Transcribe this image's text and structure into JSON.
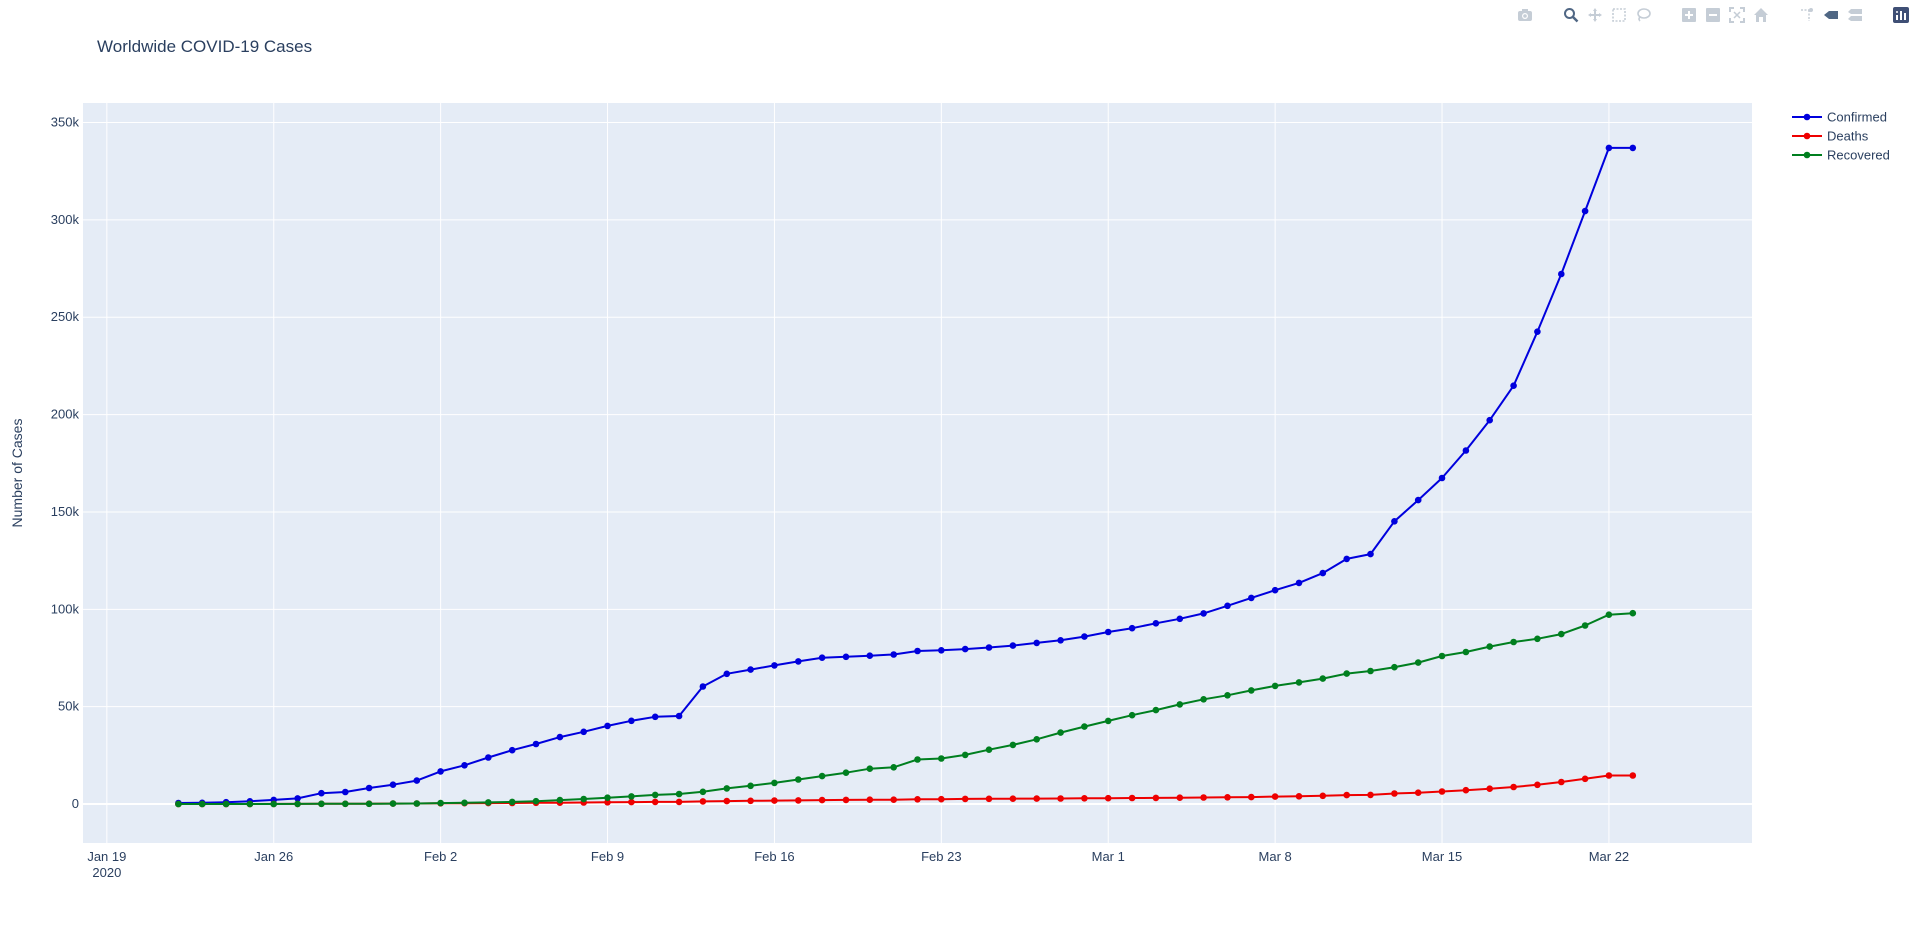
{
  "toolbar": {
    "icons": [
      "camera-icon",
      "zoom-icon",
      "pan-icon",
      "box-select-icon",
      "lasso-select-icon",
      "zoom-in-icon",
      "zoom-out-icon",
      "autoscale-icon",
      "reset-axes-icon",
      "spike-lines-icon",
      "hover-closest-icon",
      "hover-compare-icon",
      "plotly-logo-icon"
    ]
  },
  "colors": {
    "plot_bg": "#e5ecf6",
    "grid": "#ffffff",
    "text": "#2a3f5f",
    "confirmed": "#0000dd",
    "deaths": "#ee0000",
    "recovered": "#007f1f"
  },
  "chart_data": {
    "type": "line",
    "title": "Worldwide COVID-19 Cases",
    "xlabel": "",
    "ylabel": "Number of Cases",
    "x_start": "2020-01-22",
    "x": [
      "2020-01-22",
      "2020-01-23",
      "2020-01-24",
      "2020-01-25",
      "2020-01-26",
      "2020-01-27",
      "2020-01-28",
      "2020-01-29",
      "2020-01-30",
      "2020-01-31",
      "2020-02-01",
      "2020-02-02",
      "2020-02-03",
      "2020-02-04",
      "2020-02-05",
      "2020-02-06",
      "2020-02-07",
      "2020-02-08",
      "2020-02-09",
      "2020-02-10",
      "2020-02-11",
      "2020-02-12",
      "2020-02-13",
      "2020-02-14",
      "2020-02-15",
      "2020-02-16",
      "2020-02-17",
      "2020-02-18",
      "2020-02-19",
      "2020-02-20",
      "2020-02-21",
      "2020-02-22",
      "2020-02-23",
      "2020-02-24",
      "2020-02-25",
      "2020-02-26",
      "2020-02-27",
      "2020-02-28",
      "2020-02-29",
      "2020-03-01",
      "2020-03-02",
      "2020-03-03",
      "2020-03-04",
      "2020-03-05",
      "2020-03-06",
      "2020-03-07",
      "2020-03-08",
      "2020-03-09",
      "2020-03-10",
      "2020-03-11",
      "2020-03-12",
      "2020-03-13",
      "2020-03-14",
      "2020-03-15",
      "2020-03-16",
      "2020-03-17",
      "2020-03-18",
      "2020-03-19",
      "2020-03-20",
      "2020-03-21",
      "2020-03-22",
      "2020-03-23"
    ],
    "x_range": [
      "2020-01-18",
      "2020-03-28"
    ],
    "ylim": [
      -20000,
      360000
    ],
    "x_ticks": [
      {
        "date": "2020-01-19",
        "label": "Jan 19",
        "sub": "2020"
      },
      {
        "date": "2020-01-26",
        "label": "Jan 26"
      },
      {
        "date": "2020-02-02",
        "label": "Feb 2"
      },
      {
        "date": "2020-02-09",
        "label": "Feb 9"
      },
      {
        "date": "2020-02-16",
        "label": "Feb 16"
      },
      {
        "date": "2020-02-23",
        "label": "Feb 23"
      },
      {
        "date": "2020-03-01",
        "label": "Mar 1"
      },
      {
        "date": "2020-03-08",
        "label": "Mar 8"
      },
      {
        "date": "2020-03-15",
        "label": "Mar 15"
      },
      {
        "date": "2020-03-22",
        "label": "Mar 22"
      }
    ],
    "y_ticks": [
      {
        "value": 0,
        "label": "0"
      },
      {
        "value": 50000,
        "label": "50k"
      },
      {
        "value": 100000,
        "label": "100k"
      },
      {
        "value": 150000,
        "label": "150k"
      },
      {
        "value": 200000,
        "label": "200k"
      },
      {
        "value": 250000,
        "label": "250k"
      },
      {
        "value": 300000,
        "label": "300k"
      },
      {
        "value": 350000,
        "label": "350k"
      }
    ],
    "grid": true,
    "legend_position": "top-right",
    "series": [
      {
        "name": "Confirmed",
        "color": "#0000dd",
        "values": [
          555,
          654,
          941,
          1434,
          2118,
          2927,
          5578,
          6166,
          8234,
          9927,
          12038,
          16787,
          19881,
          23892,
          27635,
          30817,
          34391,
          37120,
          40150,
          42762,
          44802,
          45221,
          60368,
          66885,
          69030,
          71224,
          73258,
          75136,
          75639,
          76197,
          76819,
          78572,
          78958,
          79561,
          80406,
          81388,
          82746,
          84112,
          86011,
          88369,
          90306,
          92840,
          95120,
          97886,
          101801,
          105847,
          109821,
          113590,
          118620,
          125875,
          128352,
          145205,
          156101,
          167454,
          181574,
          197102,
          214821,
          242570,
          272208,
          304507,
          336953,
          336953
        ]
      },
      {
        "name": "Deaths",
        "color": "#ee0000",
        "values": [
          17,
          18,
          26,
          42,
          56,
          82,
          131,
          133,
          171,
          213,
          259,
          362,
          426,
          492,
          564,
          634,
          719,
          806,
          906,
          1013,
          1113,
          1118,
          1371,
          1523,
          1666,
          1770,
          1868,
          2007,
          2122,
          2247,
          2251,
          2458,
          2469,
          2629,
          2708,
          2770,
          2814,
          2872,
          2941,
          2996,
          3085,
          3160,
          3254,
          3348,
          3460,
          3558,
          3803,
          3996,
          4262,
          4615,
          4720,
          5404,
          5819,
          6440,
          7126,
          7905,
          8733,
          9867,
          11299,
          12973,
          14651,
          14651
        ]
      },
      {
        "name": "Recovered",
        "color": "#007f1f",
        "values": [
          28,
          30,
          36,
          39,
          52,
          61,
          107,
          126,
          143,
          222,
          284,
          472,
          623,
          852,
          1124,
          1487,
          2011,
          2616,
          3244,
          3946,
          4683,
          5150,
          6295,
          8058,
          9395,
          10865,
          12583,
          14352,
          16121,
          18177,
          18890,
          22886,
          23394,
          25227,
          27905,
          30384,
          33277,
          36711,
          39782,
          42716,
          45602,
          48228,
          51170,
          53796,
          55865,
          58358,
          60694,
          62494,
          64404,
          67003,
          68324,
          70251,
          72624,
          76034,
          78088,
          80840,
          83207,
          84854,
          87256,
          91676,
          97243,
          98000
        ]
      }
    ]
  }
}
